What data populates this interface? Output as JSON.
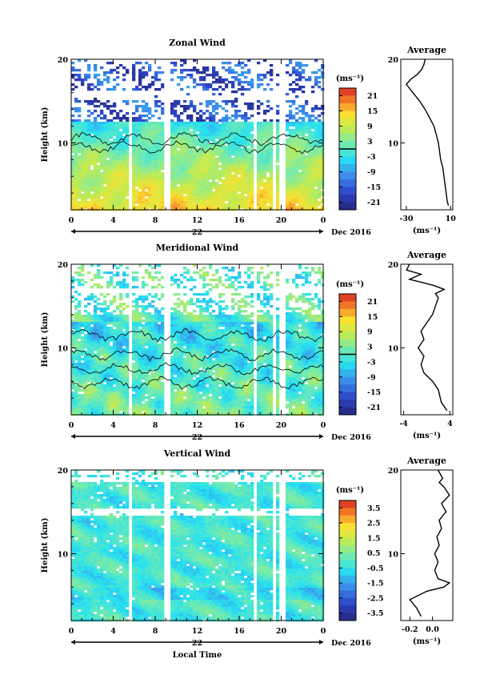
{
  "chart_data": [
    {
      "type": "heatmap",
      "id": "zonal",
      "title": "Zonal Wind",
      "ylabel": "Height (km)",
      "xlabel": "",
      "x_ticks": [
        "0",
        "4",
        "8",
        "12",
        "16",
        "20",
        "0"
      ],
      "xlim": [
        0,
        24
      ],
      "y_ticks": [
        "20",
        "10"
      ],
      "ylim": [
        2,
        20
      ],
      "date_day": "22",
      "date_label": "Dec 2016",
      "colorbar": {
        "unit": "(ms⁻¹)",
        "ticks": [
          "21",
          "15",
          "9",
          "3",
          "-3",
          "-9",
          "-15",
          "-21"
        ],
        "range": [
          -24,
          24
        ],
        "contour_level": 0
      },
      "profile": {
        "title": "Average",
        "xlabel": "(ms⁻¹)",
        "x_ticks": [
          "-30",
          "10"
        ],
        "xlim": [
          -35,
          12
        ],
        "y_ticks": [
          "20",
          "10"
        ],
        "ylim": [
          2,
          20
        ],
        "points": [
          [
            8,
            2.5
          ],
          [
            7,
            3
          ],
          [
            6,
            4
          ],
          [
            5,
            5
          ],
          [
            4,
            6
          ],
          [
            3,
            7
          ],
          [
            1,
            8
          ],
          [
            0,
            9
          ],
          [
            -1,
            10
          ],
          [
            -3,
            11
          ],
          [
            -5,
            12
          ],
          [
            -9,
            13
          ],
          [
            -13,
            14
          ],
          [
            -18,
            15
          ],
          [
            -24,
            16
          ],
          [
            -30,
            17
          ],
          [
            -26,
            17.6
          ],
          [
            -20,
            18.2
          ],
          [
            -16,
            18.8
          ],
          [
            -14,
            19.4
          ],
          [
            -13,
            20
          ]
        ]
      },
      "gaps": [
        [
          5.5,
          5.9
        ],
        [
          8.9,
          9.3
        ],
        [
          17.4,
          17.8
        ],
        [
          19.1,
          19.5
        ],
        [
          19.9,
          20.3
        ]
      ],
      "white_bands": [
        [
          15.2,
          16.4
        ]
      ],
      "sparse_above": 12.5
    },
    {
      "type": "heatmap",
      "id": "meridional",
      "title": "Meridional Wind",
      "ylabel": "Height (km)",
      "xlabel": "",
      "x_ticks": [
        "0",
        "4",
        "8",
        "12",
        "16",
        "20",
        "0"
      ],
      "xlim": [
        0,
        24
      ],
      "y_ticks": [
        "20",
        "10"
      ],
      "ylim": [
        2,
        20
      ],
      "date_day": "22",
      "date_label": "Dec 2016",
      "colorbar": {
        "unit": "(ms⁻¹)",
        "ticks": [
          "21",
          "15",
          "9",
          "3",
          "-3",
          "-9",
          "-15",
          "-21"
        ],
        "range": [
          -24,
          24
        ],
        "contour_level": 0
      },
      "profile": {
        "title": "Average",
        "xlabel": "(ms⁻¹)",
        "x_ticks": [
          "-4",
          "4"
        ],
        "xlim": [
          -4.5,
          4.5
        ],
        "y_ticks": [
          "20",
          "10"
        ],
        "ylim": [
          2,
          20
        ],
        "points": [
          [
            3.5,
            2.5
          ],
          [
            2.5,
            3.5
          ],
          [
            2,
            5
          ],
          [
            1,
            6
          ],
          [
            -0.5,
            7
          ],
          [
            -1,
            8
          ],
          [
            -0.5,
            9
          ],
          [
            -1.5,
            10
          ],
          [
            -0.5,
            11
          ],
          [
            -1,
            12
          ],
          [
            0,
            13
          ],
          [
            1,
            14
          ],
          [
            1.5,
            15
          ],
          [
            2,
            16
          ],
          [
            1.5,
            16.5
          ],
          [
            3,
            17
          ],
          [
            1,
            17.5
          ],
          [
            -3,
            18.2
          ],
          [
            -1,
            18.8
          ],
          [
            -3.5,
            19.3
          ],
          [
            -3,
            20
          ]
        ]
      },
      "gaps": [
        [
          5.5,
          5.9
        ],
        [
          8.9,
          9.3
        ],
        [
          17.4,
          17.8
        ],
        [
          19.1,
          19.5
        ],
        [
          19.9,
          20.3
        ]
      ],
      "white_bands": [
        [
          16.5,
          17.2
        ]
      ],
      "sparse_above": 14
    },
    {
      "type": "heatmap",
      "id": "vertical",
      "title": "Vertical Wind",
      "ylabel": "Height (km)",
      "xlabel": "Local Time",
      "x_ticks": [
        "0",
        "4",
        "8",
        "12",
        "16",
        "20",
        "0"
      ],
      "xlim": [
        0,
        24
      ],
      "y_ticks": [
        "20",
        "10"
      ],
      "ylim": [
        2,
        20
      ],
      "date_day": "22",
      "date_label": "Dec 2016",
      "colorbar": {
        "unit": "(ms⁻¹)",
        "ticks": [
          "3.5",
          "2.5",
          "1.5",
          "0.5",
          "-0.5",
          "-1.5",
          "-2.5",
          "-3.5"
        ],
        "range": [
          -4,
          4
        ],
        "contour_level": null
      },
      "profile": {
        "title": "Average",
        "xlabel": "(ms⁻¹)",
        "x_ticks": [
          "-0.2",
          "0.0"
        ],
        "xlim": [
          -0.28,
          0.18
        ],
        "y_ticks": [
          "20",
          "10"
        ],
        "ylim": [
          2,
          20
        ],
        "points": [
          [
            -0.1,
            2.5
          ],
          [
            -0.14,
            3.5
          ],
          [
            -0.2,
            4.5
          ],
          [
            -0.05,
            5.5
          ],
          [
            0.1,
            6
          ],
          [
            0.15,
            6.5
          ],
          [
            0.05,
            7
          ],
          [
            0.02,
            8
          ],
          [
            0.05,
            9
          ],
          [
            0.02,
            10
          ],
          [
            0.06,
            11
          ],
          [
            0.04,
            12
          ],
          [
            0.08,
            13
          ],
          [
            0.06,
            14
          ],
          [
            0.12,
            15
          ],
          [
            0.08,
            16
          ],
          [
            0.15,
            17
          ],
          [
            0.1,
            18
          ],
          [
            0.06,
            18.5
          ],
          [
            0.09,
            19
          ],
          [
            0.05,
            20
          ]
        ]
      },
      "gaps": [
        [
          5.5,
          5.9
        ],
        [
          8.9,
          9.3
        ],
        [
          17.4,
          17.8
        ],
        [
          19.1,
          19.5
        ],
        [
          19.9,
          20.3
        ]
      ],
      "white_bands": [
        [
          14.5,
          15.4
        ],
        [
          18.5,
          19
        ]
      ],
      "sparse_above": 99
    }
  ]
}
